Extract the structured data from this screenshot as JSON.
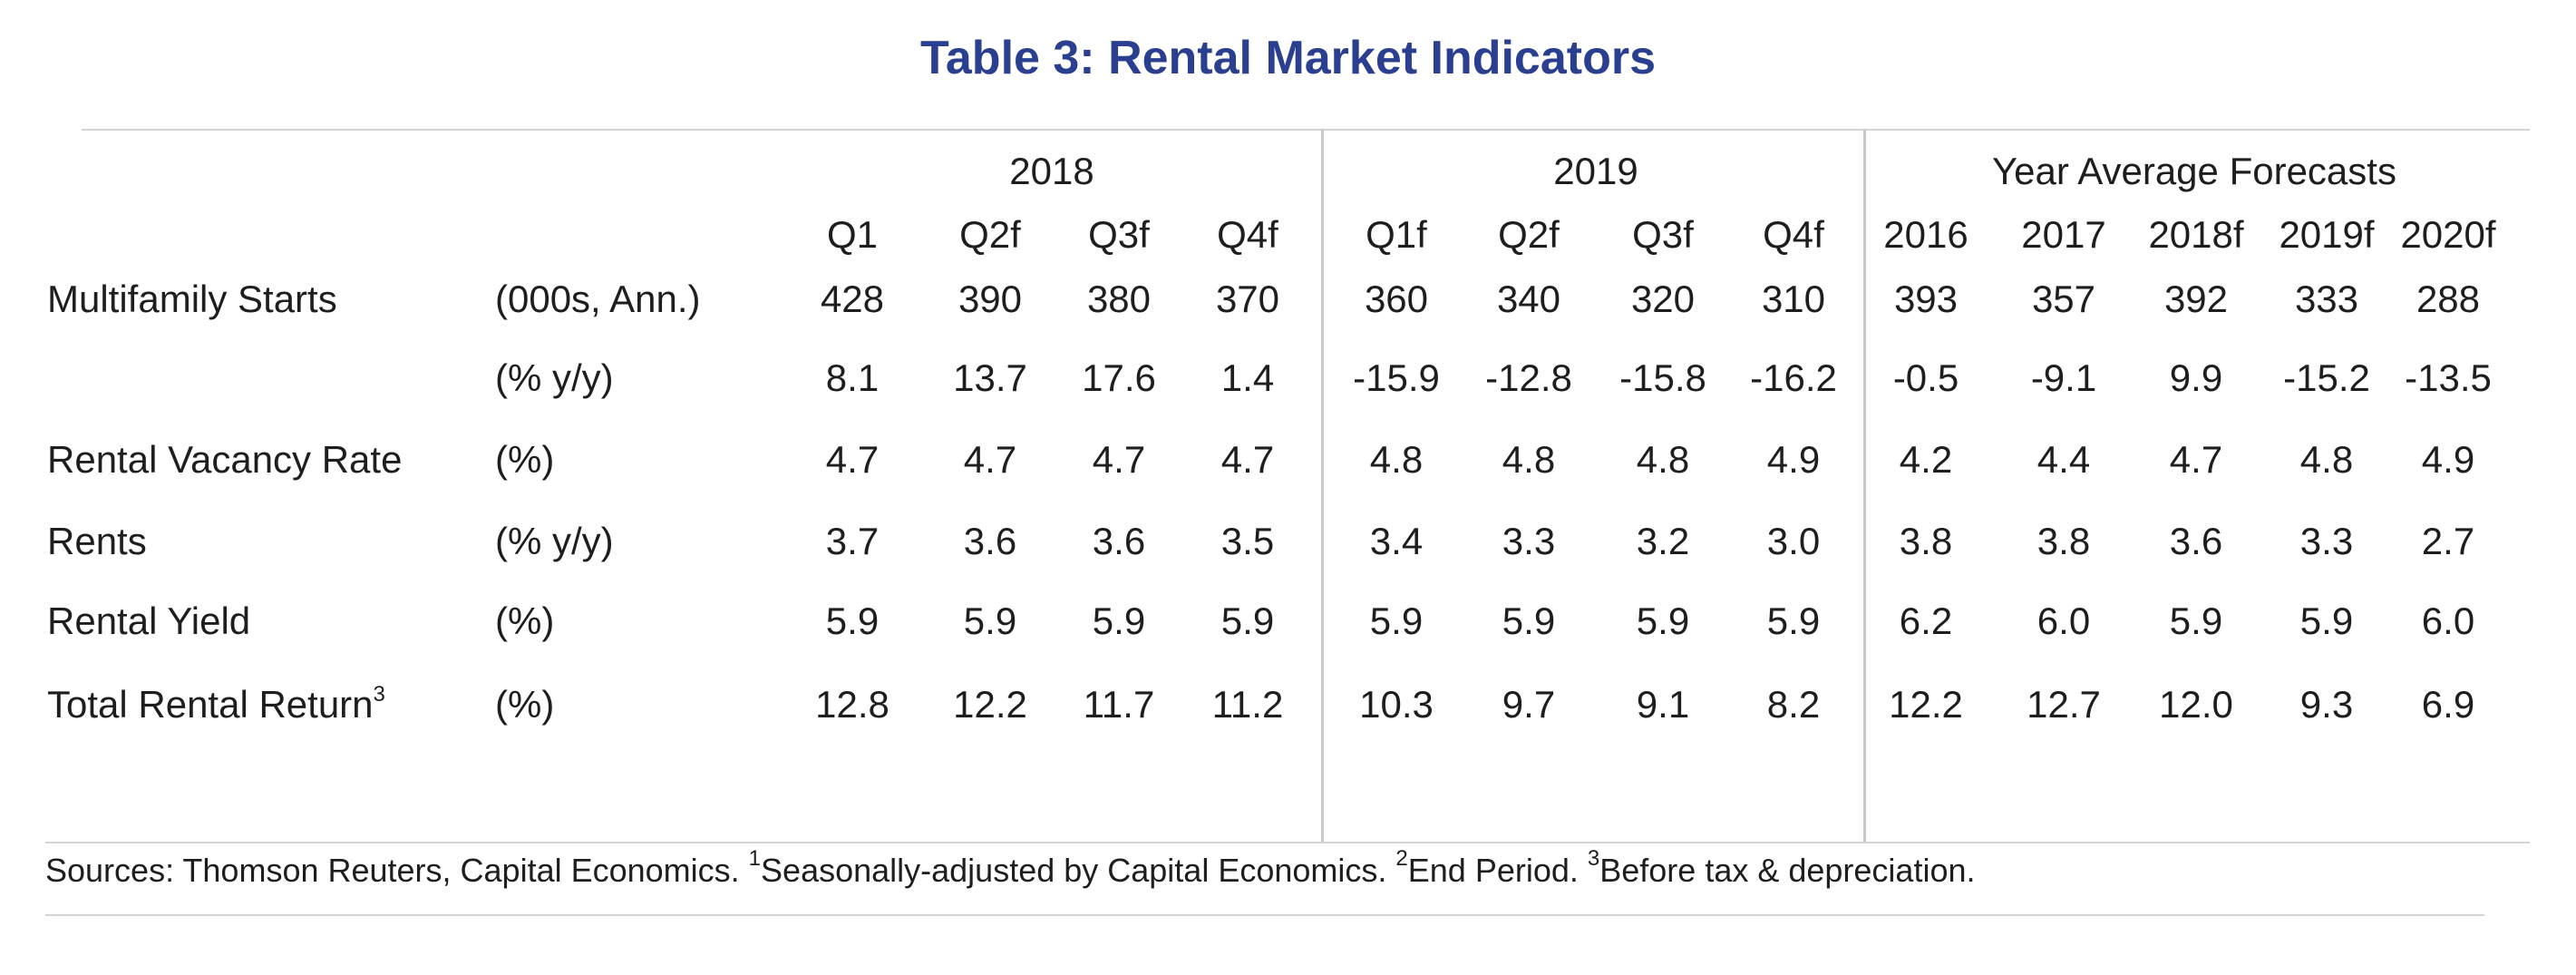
{
  "title": "Table 3: Rental Market Indicators",
  "groups": [
    "2018",
    "2019",
    "Year Average Forecasts"
  ],
  "columns": [
    "Q1",
    "Q2f",
    "Q3f",
    "Q4f",
    "Q1f",
    "Q2f",
    "Q3f",
    "Q4f",
    "2016",
    "2017",
    "2018f",
    "2019f",
    "2020f"
  ],
  "rows": [
    {
      "label": "Multifamily Starts",
      "unit": "(000s, Ann.)",
      "values": [
        "428",
        "390",
        "380",
        "370",
        "360",
        "340",
        "320",
        "310",
        "393",
        "357",
        "392",
        "333",
        "288"
      ]
    },
    {
      "label": "",
      "unit": "(% y/y)",
      "values": [
        "8.1",
        "13.7",
        "17.6",
        "1.4",
        "-15.9",
        "-12.8",
        "-15.8",
        "-16.2",
        "-0.5",
        "-9.1",
        "9.9",
        "-15.2",
        "-13.5"
      ]
    },
    {
      "label": "Rental Vacancy Rate",
      "unit": "(%)",
      "values": [
        "4.7",
        "4.7",
        "4.7",
        "4.7",
        "4.8",
        "4.8",
        "4.8",
        "4.9",
        "4.2",
        "4.4",
        "4.7",
        "4.8",
        "4.9"
      ]
    },
    {
      "label": "Rents",
      "unit": "(% y/y)",
      "values": [
        "3.7",
        "3.6",
        "3.6",
        "3.5",
        "3.4",
        "3.3",
        "3.2",
        "3.0",
        "3.8",
        "3.8",
        "3.6",
        "3.3",
        "2.7"
      ]
    },
    {
      "label": "Rental Yield",
      "unit": "(%)",
      "values": [
        "5.9",
        "5.9",
        "5.9",
        "5.9",
        "5.9",
        "5.9",
        "5.9",
        "5.9",
        "6.2",
        "6.0",
        "5.9",
        "5.9",
        "6.0"
      ]
    },
    {
      "label": "Total Rental Return",
      "label_sup": "3",
      "unit": "(%)",
      "values": [
        "12.8",
        "12.2",
        "11.7",
        "11.2",
        "10.3",
        "9.7",
        "9.1",
        "8.2",
        "12.2",
        "12.7",
        "12.0",
        "9.3",
        "6.9"
      ]
    }
  ],
  "sources": {
    "prefix": "Sources: Thomson Reuters, Capital Economics. ",
    "fn1_mark": "1",
    "fn1_text": "Seasonally-adjusted by Capital Economics. ",
    "fn2_mark": "2",
    "fn2_text": "End Period. ",
    "fn3_mark": "3",
    "fn3_text": "Before tax & depreciation."
  }
}
